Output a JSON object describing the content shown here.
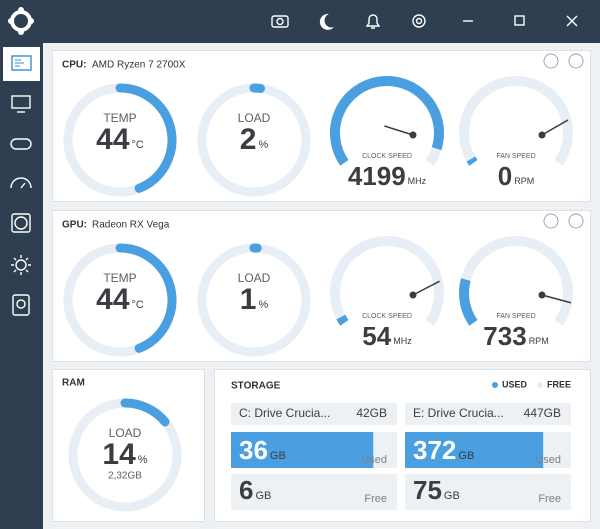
{
  "cpu": {
    "label": "CPU:",
    "name": "AMD Ryzen 7 2700X",
    "temp": {
      "label": "TEMP",
      "value": 44,
      "unit": "°C"
    },
    "load": {
      "label": "LOAD",
      "value": 2,
      "unit": "%"
    },
    "clock": {
      "label": "CLOCK SPEED",
      "value": 4199,
      "unit": "MHz"
    },
    "fan": {
      "label": "FAN SPEED",
      "value": 0,
      "unit": "RPM"
    }
  },
  "gpu": {
    "label": "GPU:",
    "name": "Radeon RX Vega",
    "temp": {
      "label": "TEMP",
      "value": 44,
      "unit": "°C"
    },
    "load": {
      "label": "LOAD",
      "value": 1,
      "unit": "%"
    },
    "clock": {
      "label": "CLOCK SPEED",
      "value": 54,
      "unit": "MHz"
    },
    "fan": {
      "label": "FAN SPEED",
      "value": 733,
      "unit": "RPM"
    }
  },
  "ram": {
    "label": "RAM",
    "load": {
      "label": "LOAD",
      "value": 14,
      "unit": "%"
    },
    "used": "2,32GB"
  },
  "storage": {
    "title": "STORAGE",
    "legend": [
      "USED",
      "FREE"
    ],
    "drives": [
      {
        "name": "C: Drive Crucia...",
        "total": "42GB",
        "used": {
          "value": 36,
          "unit": "GB",
          "label": "Used"
        },
        "free": {
          "value": 6,
          "unit": "GB",
          "label": "Free"
        }
      },
      {
        "name": "E: Drive Crucia...",
        "total": "447GB",
        "used": {
          "value": 372,
          "unit": "GB",
          "label": "Used"
        },
        "free": {
          "value": 75,
          "unit": "GB",
          "label": "Free"
        }
      }
    ]
  }
}
